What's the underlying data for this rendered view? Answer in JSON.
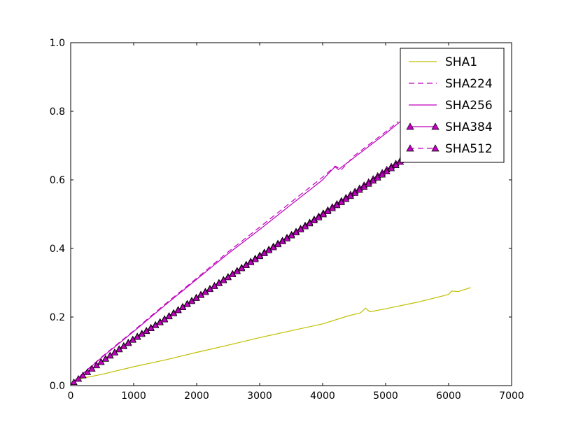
{
  "chart_data": {
    "type": "line",
    "title": "",
    "xlabel": "",
    "ylabel": "",
    "xlim": [
      0,
      7000
    ],
    "ylim": [
      0.0,
      1.0
    ],
    "x_ticks": [
      "0",
      "1000",
      "2000",
      "3000",
      "4000",
      "5000",
      "6000",
      "7000"
    ],
    "y_ticks": [
      "0.0",
      "0.2",
      "0.4",
      "0.6",
      "0.8",
      "1.0"
    ],
    "grid": false,
    "legend_placement": "top-right",
    "series": [
      {
        "name": "SHA1",
        "color": "#bfbf00",
        "line_style": "solid",
        "marker": "none",
        "points": [
          [
            50,
            0.012
          ],
          [
            200,
            0.022
          ],
          [
            500,
            0.033
          ],
          [
            1000,
            0.055
          ],
          [
            1500,
            0.075
          ],
          [
            2000,
            0.097
          ],
          [
            2500,
            0.118
          ],
          [
            3000,
            0.14
          ],
          [
            3500,
            0.16
          ],
          [
            4000,
            0.18
          ],
          [
            4400,
            0.203
          ],
          [
            4600,
            0.212
          ],
          [
            4680,
            0.226
          ],
          [
            4750,
            0.215
          ],
          [
            5000,
            0.224
          ],
          [
            5500,
            0.243
          ],
          [
            6000,
            0.266
          ],
          [
            6050,
            0.276
          ],
          [
            6150,
            0.274
          ],
          [
            6350,
            0.286
          ]
        ]
      },
      {
        "name": "SHA224",
        "color": "#bf00bf",
        "line_style": "dashed",
        "marker": "none",
        "points": [
          [
            50,
            0.012
          ],
          [
            500,
            0.085
          ],
          [
            1000,
            0.16
          ],
          [
            1500,
            0.238
          ],
          [
            2000,
            0.313
          ],
          [
            2500,
            0.39
          ],
          [
            3000,
            0.462
          ],
          [
            3500,
            0.535
          ],
          [
            4000,
            0.608
          ],
          [
            4200,
            0.64
          ],
          [
            4300,
            0.63
          ],
          [
            4500,
            0.67
          ],
          [
            5000,
            0.74
          ],
          [
            5200,
            0.77
          ]
        ]
      },
      {
        "name": "SHA256",
        "color": "#bf00bf",
        "line_style": "solid",
        "marker": "none",
        "points": [
          [
            50,
            0.012
          ],
          [
            500,
            0.083
          ],
          [
            1000,
            0.158
          ],
          [
            1500,
            0.235
          ],
          [
            2000,
            0.31
          ],
          [
            2500,
            0.385
          ],
          [
            3000,
            0.455
          ],
          [
            3500,
            0.528
          ],
          [
            4000,
            0.6
          ],
          [
            4150,
            0.63
          ],
          [
            4200,
            0.638
          ],
          [
            4250,
            0.63
          ],
          [
            4500,
            0.665
          ],
          [
            5000,
            0.735
          ],
          [
            5300,
            0.78
          ]
        ]
      },
      {
        "name": "SHA384",
        "color": "#bf00bf",
        "line_style": "solid",
        "marker": "triangle",
        "points": [
          [
            50,
            0.01
          ],
          [
            500,
            0.072
          ],
          [
            1000,
            0.137
          ],
          [
            1500,
            0.196
          ],
          [
            2000,
            0.258
          ],
          [
            2500,
            0.318
          ],
          [
            3000,
            0.38
          ],
          [
            3500,
            0.44
          ],
          [
            4000,
            0.502
          ],
          [
            4500,
            0.565
          ],
          [
            5000,
            0.628
          ],
          [
            5500,
            0.69
          ],
          [
            5600,
            0.7
          ]
        ]
      },
      {
        "name": "SHA512",
        "color": "#bf00bf",
        "line_style": "dashed",
        "marker": "triangle",
        "points": [
          [
            50,
            0.01
          ],
          [
            500,
            0.071
          ],
          [
            1000,
            0.135
          ],
          [
            1500,
            0.194
          ],
          [
            2000,
            0.256
          ],
          [
            2500,
            0.316
          ],
          [
            3000,
            0.377
          ],
          [
            3500,
            0.437
          ],
          [
            4000,
            0.498
          ],
          [
            4500,
            0.56
          ],
          [
            5000,
            0.622
          ],
          [
            5450,
            0.68
          ],
          [
            5600,
            0.7
          ]
        ]
      }
    ]
  }
}
